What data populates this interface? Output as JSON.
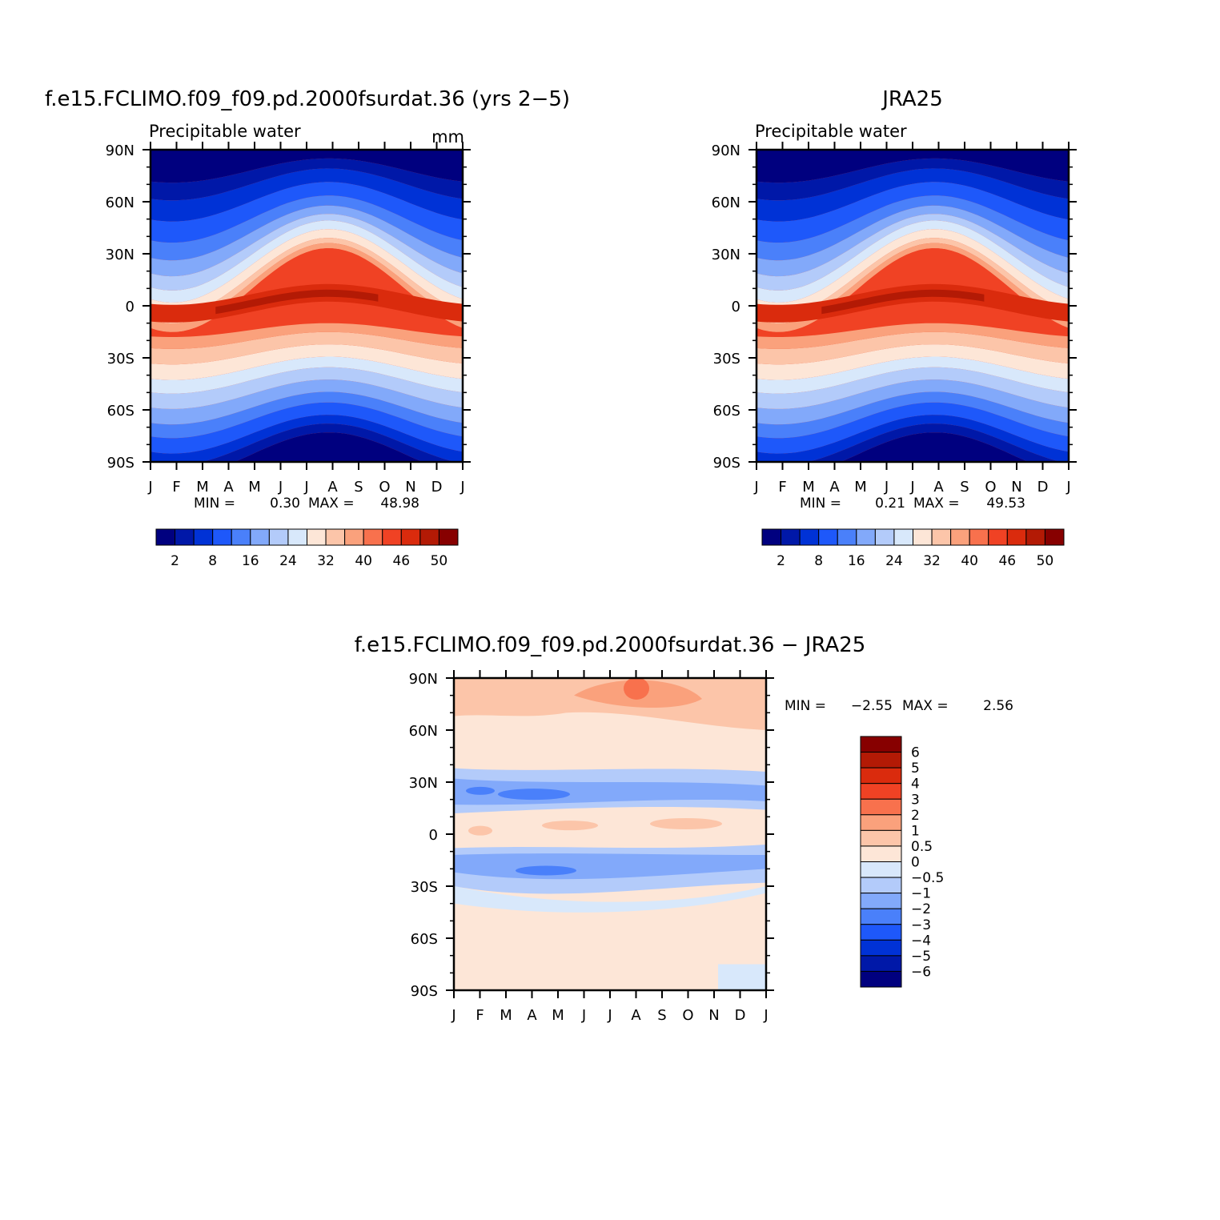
{
  "panels": [
    {
      "id": "model",
      "title": "f.e15.FCLIMO.f09_f09.pd.2000fsurdat.36 (yrs 2−5)",
      "left_label": "Precipitable water",
      "right_label": "mm",
      "min_label": "MIN =",
      "min_value": "0.30",
      "max_label": "MAX =",
      "max_value": "48.98"
    },
    {
      "id": "obs",
      "title": "JRA25",
      "left_label": "Precipitable water",
      "right_label": "",
      "min_label": "MIN =",
      "min_value": "0.21",
      "max_label": "MAX =",
      "max_value": "49.53"
    },
    {
      "id": "diff",
      "title": "f.e15.FCLIMO.f09_f09.pd.2000fsurdat.36 − JRA25",
      "left_label": "",
      "right_label": "",
      "min_label": "MIN =",
      "min_value": "−2.55",
      "max_label": "MAX =",
      "max_value": "2.56"
    }
  ],
  "chart_data": [
    {
      "type": "heatmap",
      "title": "f.e15.FCLIMO.f09_f09.pd.2000fsurdat.36 (yrs 2−5)",
      "variable": "Precipitable water",
      "units": "mm",
      "x_ticks": [
        "J",
        "F",
        "M",
        "A",
        "M",
        "J",
        "J",
        "A",
        "S",
        "O",
        "N",
        "D",
        "J"
      ],
      "y_ticks": [
        "90N",
        "60N",
        "30N",
        "0",
        "30S",
        "60S",
        "90S"
      ],
      "y_range_deg": [
        -90,
        90
      ],
      "levels": [
        2,
        5,
        8,
        12,
        16,
        20,
        24,
        28,
        32,
        36,
        40,
        43,
        46,
        48,
        50
      ],
      "colorbar_labels": [
        "2",
        "8",
        "16",
        "24",
        "32",
        "40",
        "46",
        "50"
      ],
      "min": 0.3,
      "max": 48.98
    },
    {
      "type": "heatmap",
      "title": "JRA25",
      "variable": "Precipitable water",
      "x_ticks": [
        "J",
        "F",
        "M",
        "A",
        "M",
        "J",
        "J",
        "A",
        "S",
        "O",
        "N",
        "D",
        "J"
      ],
      "y_ticks": [
        "90N",
        "60N",
        "30N",
        "0",
        "30S",
        "60S",
        "90S"
      ],
      "y_range_deg": [
        -90,
        90
      ],
      "levels": [
        2,
        5,
        8,
        12,
        16,
        20,
        24,
        28,
        32,
        36,
        40,
        43,
        46,
        48,
        50
      ],
      "colorbar_labels": [
        "2",
        "8",
        "16",
        "24",
        "32",
        "40",
        "46",
        "50"
      ],
      "min": 0.21,
      "max": 49.53
    },
    {
      "type": "heatmap",
      "title": "f.e15.FCLIMO.f09_f09.pd.2000fsurdat.36 − JRA25",
      "x_ticks": [
        "J",
        "F",
        "M",
        "A",
        "M",
        "J",
        "J",
        "A",
        "S",
        "O",
        "N",
        "D",
        "J"
      ],
      "y_ticks": [
        "90N",
        "60N",
        "30N",
        "0",
        "30S",
        "60S",
        "90S"
      ],
      "y_range_deg": [
        -90,
        90
      ],
      "levels": [
        -6,
        -5,
        -4,
        -3,
        -2,
        -1,
        -0.5,
        0,
        0.5,
        1,
        2,
        3,
        4,
        5,
        6
      ],
      "colorbar_labels": [
        "6",
        "5",
        "4",
        "3",
        "2",
        "1",
        "0.5",
        "0",
        "−0.5",
        "−1",
        "−2",
        "−3",
        "−4",
        "−5",
        "−6"
      ],
      "min": -2.55,
      "max": 2.56
    }
  ],
  "palette": [
    "#00007f",
    "#0018a8",
    "#0032d6",
    "#1e58fa",
    "#4a80fa",
    "#82a9fa",
    "#b3cbfa",
    "#d8e8fb",
    "#fde6d7",
    "#fcc5a9",
    "#faa17c",
    "#f8714d",
    "#f04224",
    "#da2b0d",
    "#b31a05",
    "#870000"
  ]
}
